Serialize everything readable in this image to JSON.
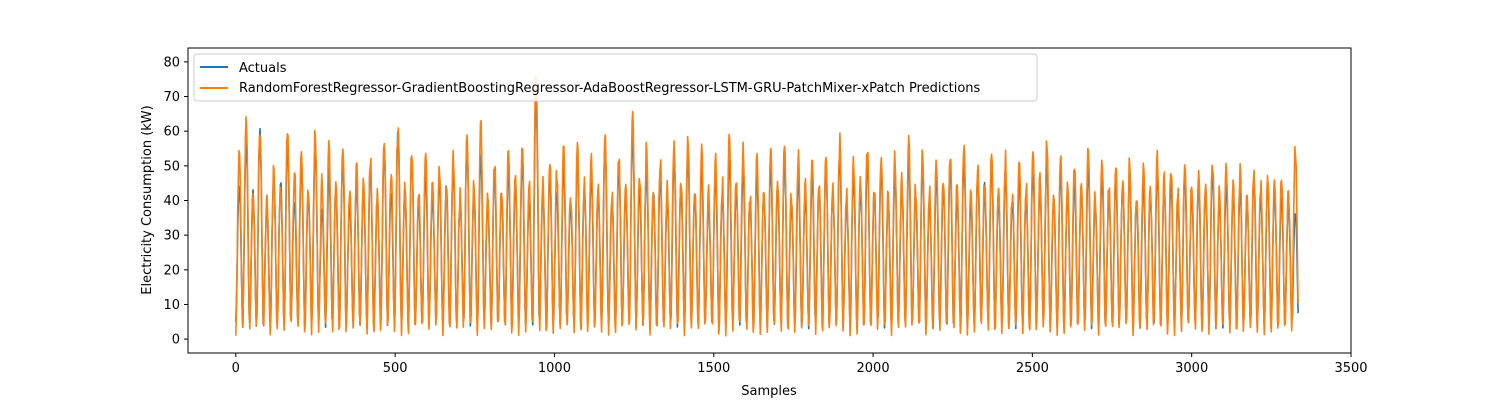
{
  "chart_data": {
    "type": "line",
    "title": "",
    "xlabel": "Samples",
    "ylabel": "Electricity Consumption (kW)",
    "xlim": [
      -150,
      3500
    ],
    "ylim": [
      -4,
      84
    ],
    "xticks": [
      0,
      500,
      1000,
      1500,
      2000,
      2500,
      3000,
      3500
    ],
    "yticks": [
      0,
      10,
      20,
      30,
      40,
      50,
      60,
      70,
      80
    ],
    "n_samples": 3336,
    "legend_position": "upper-left",
    "grid": false,
    "series": [
      {
        "name": "Actuals",
        "color": "#1f77b4",
        "peaks": [
          44,
          58,
          42,
          60,
          38,
          48,
          45,
          58,
          40,
          52,
          42,
          56,
          38,
          48,
          44,
          52,
          40,
          46,
          44,
          50,
          40,
          55,
          42,
          60,
          44,
          52,
          40,
          48,
          42,
          46,
          44,
          50,
          40,
          56,
          42,
          54,
          40,
          48,
          42,
          50,
          44,
          52,
          40,
          72,
          42,
          48,
          44,
          50,
          40,
          52,
          44,
          48,
          42,
          56,
          40,
          50,
          42,
          60,
          44,
          50,
          42,
          48,
          40,
          52,
          44,
          54,
          42,
          50,
          40,
          48,
          42,
          52,
          44,
          50,
          40,
          48,
          42,
          50,
          44,
          52,
          40,
          48,
          42,
          46,
          44,
          50,
          42,
          54,
          40,
          48,
          44,
          52,
          42,
          50,
          40,
          48,
          44,
          52,
          42,
          50,
          40,
          48,
          44,
          50,
          42,
          52,
          40,
          48,
          44,
          50,
          42,
          48,
          40,
          46,
          42,
          50,
          44,
          52,
          40,
          48,
          42,
          46,
          44,
          50,
          40,
          48,
          42,
          46,
          44,
          48,
          40,
          46,
          42,
          48,
          44,
          46,
          40,
          48,
          42,
          46,
          44,
          49,
          40,
          46,
          42,
          44,
          40,
          46,
          42,
          45,
          44,
          42,
          40,
          38
        ],
        "troughs": [
          5,
          3,
          4,
          3
        ]
      },
      {
        "name": "RandomForestRegressor-GradientBoostingRegressor-AdaBoostRegressor-LSTM-GRU-PatchMixer-xPatch Predictions",
        "color": "#ff7f0e",
        "peaks": [
          55,
          63,
          42,
          61,
          40,
          49,
          45,
          62,
          48,
          56,
          45,
          60,
          46,
          55,
          44,
          57,
          43,
          49,
          44,
          53,
          42,
          58,
          48,
          61,
          44,
          55,
          42,
          53,
          45,
          50,
          44,
          54,
          42,
          57,
          45,
          62,
          42,
          52,
          44,
          54,
          46,
          55,
          44,
          79,
          45,
          52,
          48,
          54,
          42,
          55,
          44,
          52,
          45,
          59,
          42,
          54,
          45,
          64,
          46,
          55,
          42,
          52,
          44,
          56,
          46,
          58,
          44,
          54,
          42,
          52,
          45,
          57,
          46,
          54,
          42,
          52,
          44,
          54,
          46,
          56,
          42,
          52,
          44,
          50,
          46,
          54,
          44,
          57,
          42,
          52,
          46,
          56,
          44,
          54,
          42,
          52,
          46,
          56,
          44,
          54,
          42,
          52,
          46,
          54,
          44,
          56,
          42,
          52,
          46,
          54,
          44,
          52,
          42,
          50,
          44,
          54,
          46,
          56,
          42,
          52,
          44,
          50,
          46,
          54,
          42,
          52,
          44,
          50,
          46,
          52,
          42,
          50,
          44,
          52,
          46,
          50,
          42,
          52,
          44,
          50,
          46,
          52,
          42,
          50,
          44,
          48,
          42,
          50,
          44,
          48,
          46,
          46,
          44,
          54
        ],
        "troughs": [
          1,
          3,
          2,
          4,
          1
        ]
      }
    ]
  }
}
